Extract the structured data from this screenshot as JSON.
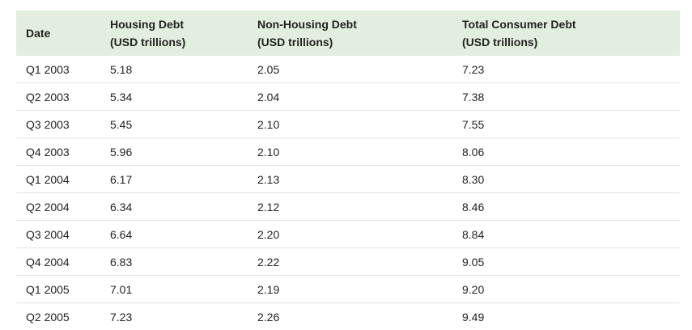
{
  "table": {
    "headers": [
      {
        "line1": "Date",
        "line2": ""
      },
      {
        "line1": "Housing Debt",
        "line2": "(USD trillions)"
      },
      {
        "line1": "Non-Housing Debt",
        "line2": "(USD trillions)"
      },
      {
        "line1": "Total Consumer Debt",
        "line2": "(USD trillions)"
      }
    ],
    "rows": [
      [
        "Q1 2003",
        "5.18",
        "2.05",
        "7.23"
      ],
      [
        "Q2 2003",
        "5.34",
        "2.04",
        "7.38"
      ],
      [
        "Q3 2003",
        "5.45",
        "2.10",
        "7.55"
      ],
      [
        "Q4 2003",
        "5.96",
        "2.10",
        "8.06"
      ],
      [
        "Q1 2004",
        "6.17",
        "2.13",
        "8.30"
      ],
      [
        "Q2 2004",
        "6.34",
        "2.12",
        "8.46"
      ],
      [
        "Q3 2004",
        "6.64",
        "2.20",
        "8.84"
      ],
      [
        "Q4 2004",
        "6.83",
        "2.22",
        "9.05"
      ],
      [
        "Q1 2005",
        "7.01",
        "2.19",
        "9.20"
      ],
      [
        "Q2 2005",
        "7.23",
        "2.26",
        "9.49"
      ]
    ]
  },
  "colors": {
    "header_background": "#e3efde",
    "row_divider": "#e2e2e2",
    "text": "#222222"
  }
}
